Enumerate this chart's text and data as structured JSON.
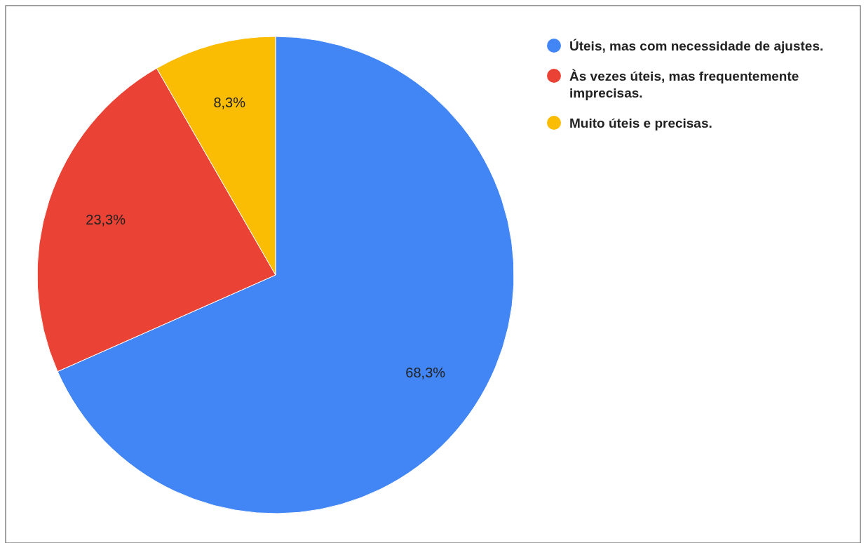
{
  "chart_data": {
    "type": "pie",
    "categories": [
      "Úteis, mas com necessidade de ajustes.",
      "Às vezes úteis, mas frequentemente imprecisas.",
      "Muito úteis e precisas."
    ],
    "values": [
      68.3,
      23.3,
      8.3
    ],
    "colors": [
      "#4285f4",
      "#ea4335",
      "#fbbc04"
    ],
    "value_labels": [
      "68,3%",
      "23,3%",
      "8,3%"
    ],
    "legend": "top right"
  }
}
